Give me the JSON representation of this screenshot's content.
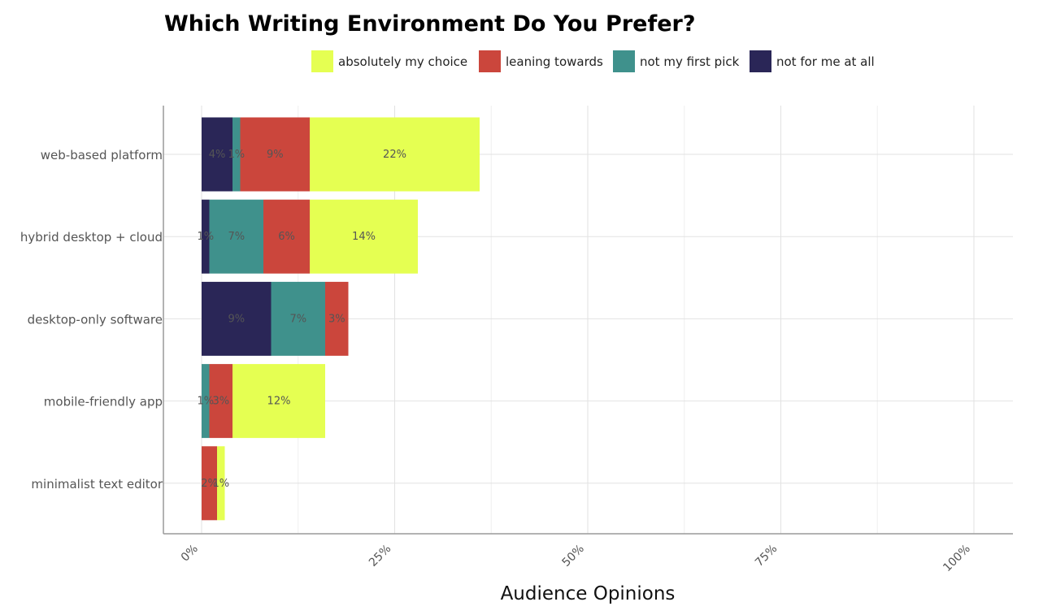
{
  "chart_data": {
    "type": "bar",
    "orientation": "horizontal",
    "stacked": true,
    "title": "Which Writing Environment Do You Prefer?",
    "xlabel": "Audience Opinions",
    "ylabel": "",
    "xlim": [
      0,
      100
    ],
    "x_ticks": [
      "0%",
      "25%",
      "50%",
      "75%",
      "100%"
    ],
    "x_tick_values": [
      0,
      25,
      50,
      75,
      100
    ],
    "grid": true,
    "legend_position": "top",
    "categories": [
      "web-based platform",
      "hybrid desktop + cloud",
      "desktop-only software",
      "mobile-friendly app",
      "minimalist text editor"
    ],
    "series": [
      {
        "name": "not for me at all",
        "color": "#2a2657",
        "values": [
          4,
          1,
          9,
          0,
          0
        ],
        "labels": [
          "4%",
          "1%",
          "9%",
          "",
          ""
        ]
      },
      {
        "name": "not my first pick",
        "color": "#3f918c",
        "values": [
          1,
          7,
          7,
          1,
          0
        ],
        "labels": [
          "1%",
          "7%",
          "7%",
          "1%",
          ""
        ]
      },
      {
        "name": "leaning towards",
        "color": "#cb463c",
        "values": [
          9,
          6,
          3,
          3,
          2
        ],
        "labels": [
          "9%",
          "6%",
          "3%",
          "3%",
          "2%"
        ]
      },
      {
        "name": "absolutely my choice",
        "color": "#e5ff52",
        "values": [
          22,
          14,
          0,
          12,
          1
        ],
        "labels": [
          "22%",
          "14%",
          "",
          "12%",
          "1%"
        ]
      }
    ],
    "legend_order": [
      "absolutely my choice",
      "leaning towards",
      "not my first pick",
      "not for me at all"
    ]
  }
}
